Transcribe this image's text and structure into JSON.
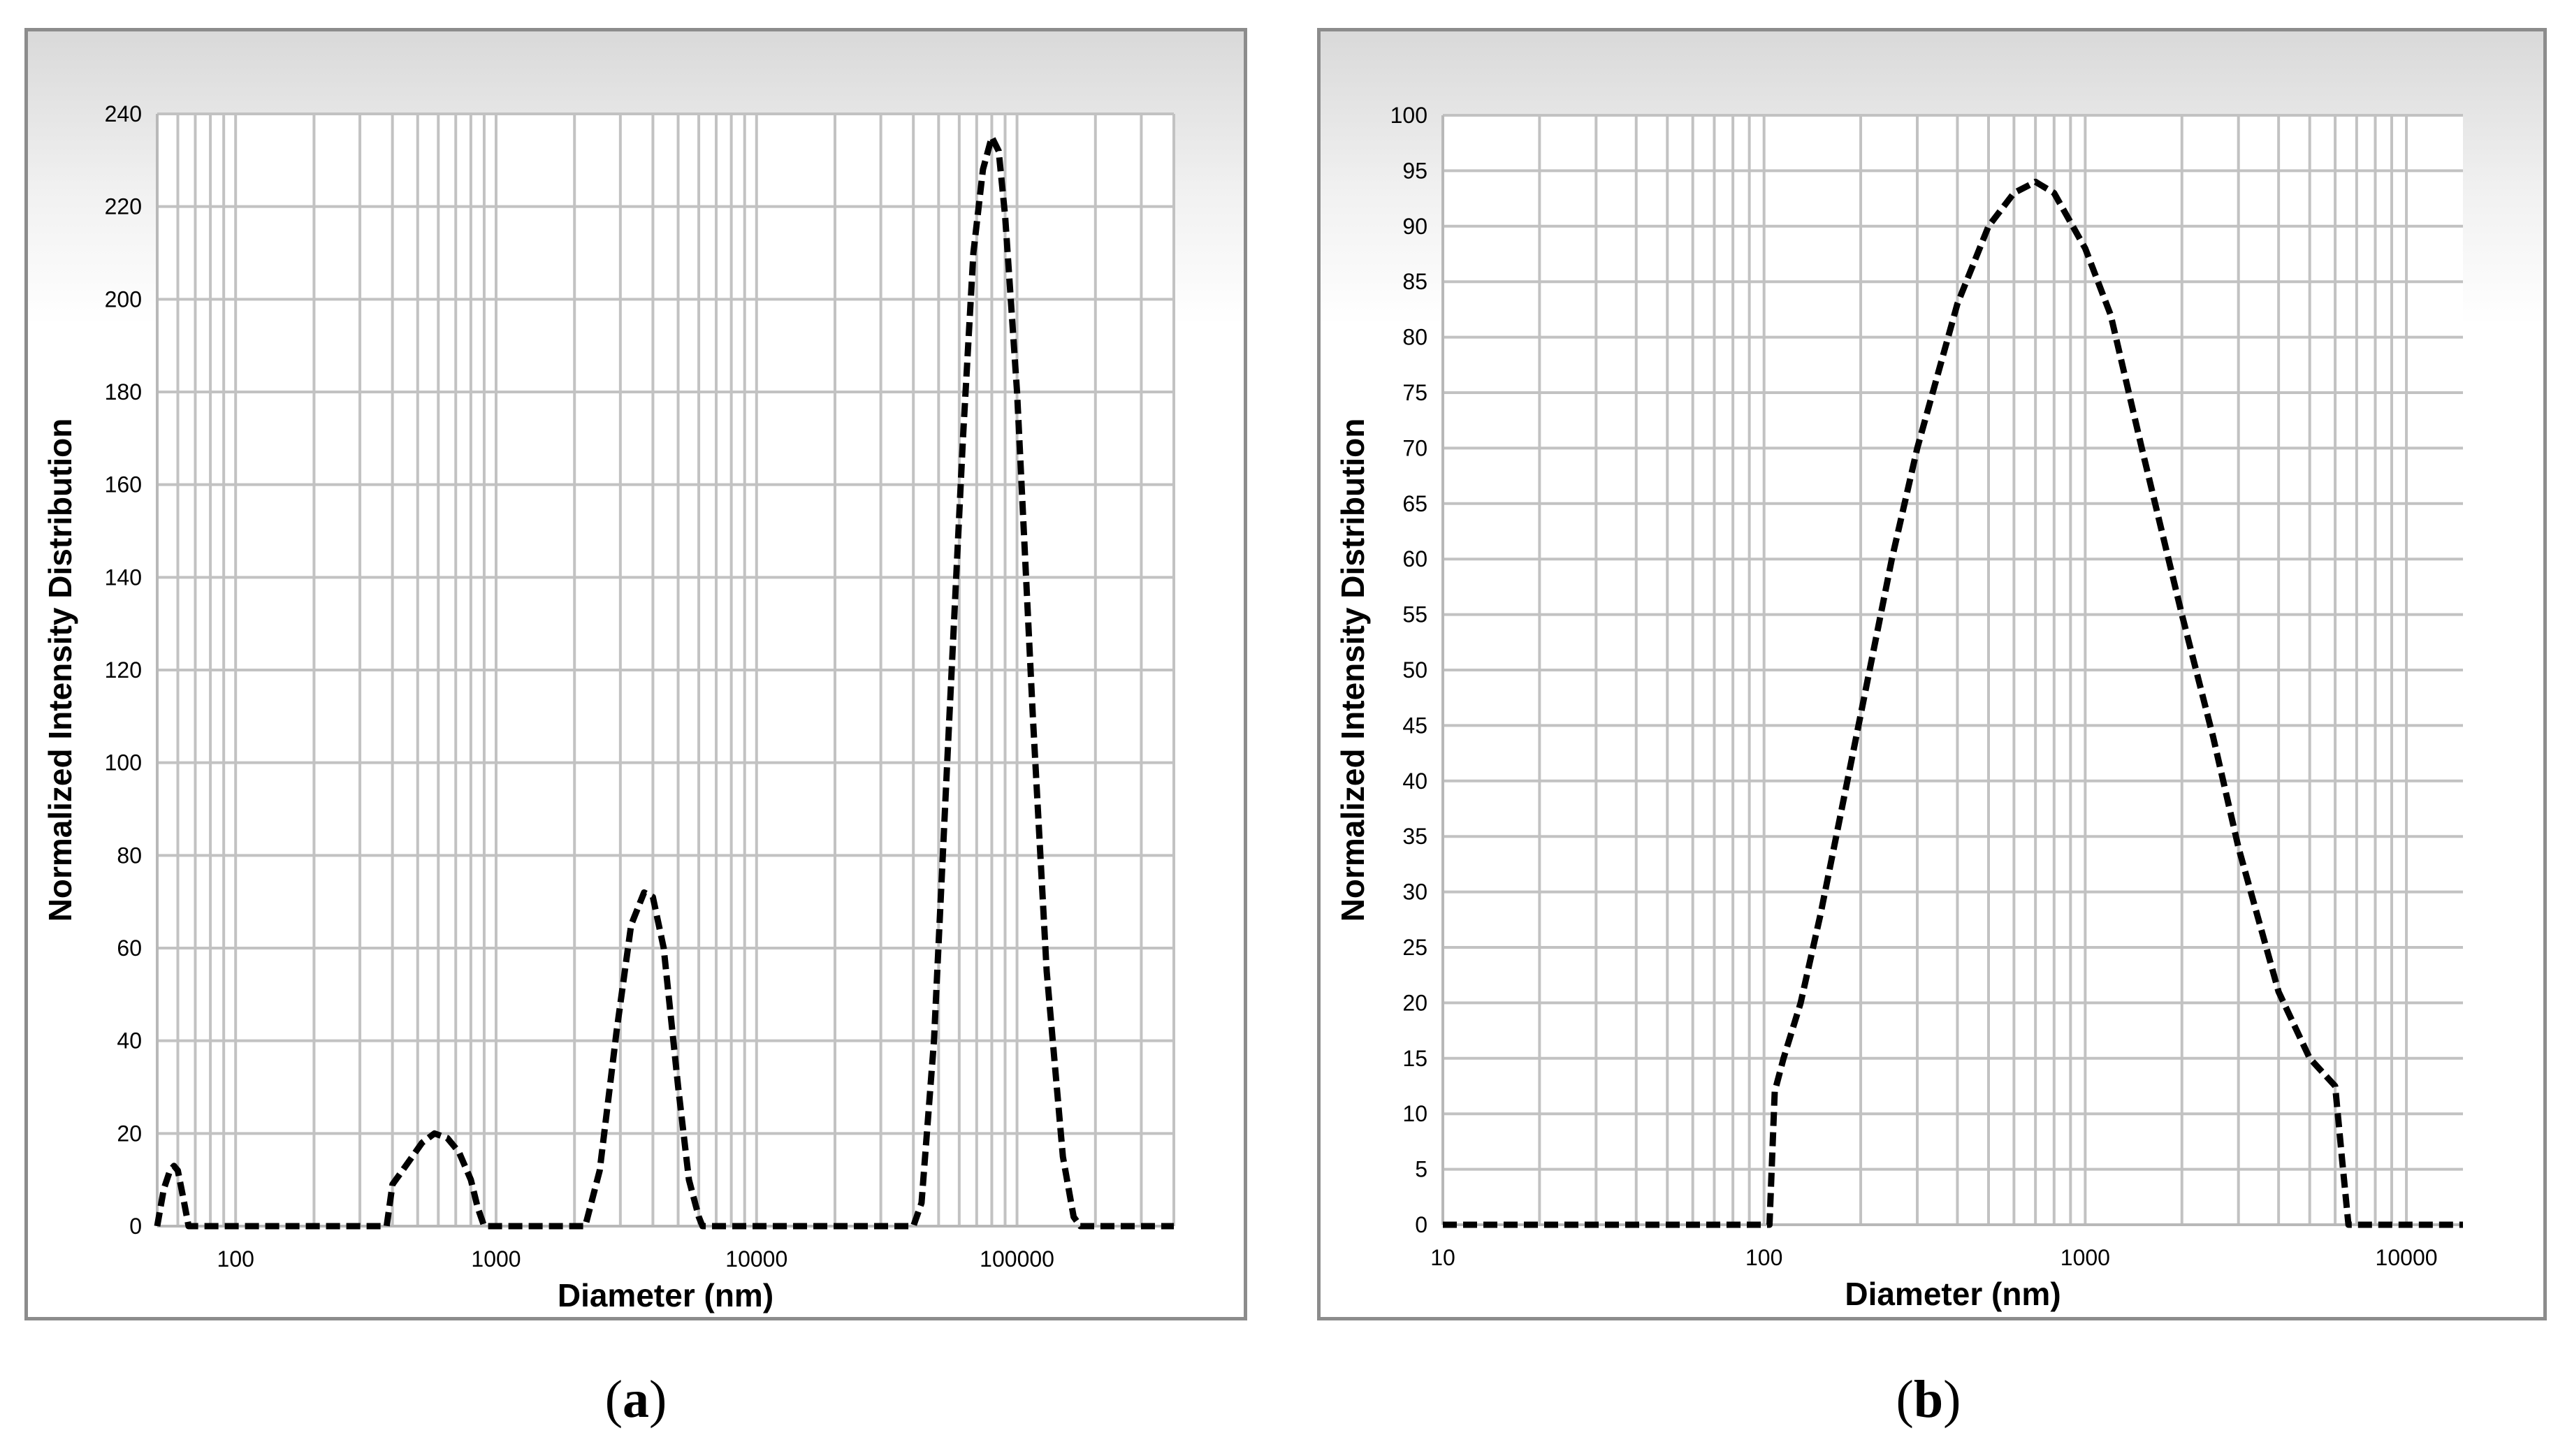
{
  "chart_data": [
    {
      "type": "line",
      "panel_label": "a",
      "xlabel": "Diameter (nm)",
      "ylabel": "Normalized Intensity Distribution",
      "xscale": "log",
      "xlim": [
        50,
        400000
      ],
      "ylim": [
        0,
        240
      ],
      "xticks": [
        100,
        1000,
        10000,
        100000
      ],
      "xtick_labels": [
        "100",
        "1000",
        "10000",
        "100000"
      ],
      "yticks": [
        0,
        20,
        40,
        60,
        80,
        100,
        120,
        140,
        160,
        180,
        200,
        220,
        240
      ],
      "ytick_labels": [
        "0",
        "20",
        "40",
        "60",
        "80",
        "100",
        "120",
        "140",
        "160",
        "180",
        "200",
        "220",
        "240"
      ],
      "grid": true,
      "line_style": "dashed",
      "line_color": "#000000",
      "series": [
        {
          "x": [
            50,
            53,
            56,
            58,
            60,
            63,
            66,
            70,
            100,
            200,
            380,
            400,
            450,
            520,
            580,
            650,
            720,
            800,
            850,
            900,
            1000,
            2000,
            2200,
            2500,
            2900,
            3300,
            3700,
            4000,
            4400,
            5000,
            5500,
            6000,
            6200,
            10000,
            30000,
            40000,
            43000,
            48000,
            55000,
            62000,
            68000,
            74000,
            80000,
            85000,
            90000,
            100000,
            115000,
            130000,
            150000,
            165000,
            175000,
            200000,
            400000
          ],
          "y": [
            0,
            8,
            12,
            13,
            12,
            6,
            0,
            0,
            0,
            0,
            0,
            9,
            13,
            18,
            20,
            19,
            16,
            10,
            4,
            0,
            0,
            0,
            0,
            12,
            42,
            65,
            72,
            71,
            60,
            30,
            10,
            2,
            0,
            0,
            0,
            0,
            5,
            40,
            110,
            170,
            210,
            228,
            235,
            232,
            218,
            180,
            110,
            55,
            15,
            2,
            0,
            0,
            0
          ]
        }
      ]
    },
    {
      "type": "line",
      "panel_label": "b",
      "xlabel": "Diameter (nm)",
      "ylabel": "Normalized Intensity Distribution",
      "xscale": "log",
      "xlim": [
        10,
        15000
      ],
      "ylim": [
        0,
        100
      ],
      "xticks": [
        10,
        100,
        1000,
        10000
      ],
      "xtick_labels": [
        "10",
        "100",
        "1000",
        "10000"
      ],
      "yticks": [
        0,
        5,
        10,
        15,
        20,
        25,
        30,
        35,
        40,
        45,
        50,
        55,
        60,
        65,
        70,
        75,
        80,
        85,
        90,
        95,
        100
      ],
      "ytick_labels": [
        "0",
        "5",
        "10",
        "15",
        "20",
        "25",
        "30",
        "35",
        "40",
        "45",
        "50",
        "55",
        "60",
        "65",
        "70",
        "75",
        "80",
        "85",
        "90",
        "95",
        "100"
      ],
      "grid": true,
      "line_style": "dashed",
      "line_color": "#000000",
      "series": [
        {
          "x": [
            10,
            50,
            104,
            108,
            115,
            130,
            150,
            200,
            250,
            300,
            400,
            500,
            600,
            700,
            800,
            1000,
            1200,
            1500,
            2000,
            2500,
            3000,
            4000,
            5000,
            6000,
            6300,
            6600,
            7000,
            10000,
            15000
          ],
          "y": [
            0,
            0,
            0,
            12,
            15,
            20,
            28,
            46,
            60,
            70,
            83,
            90,
            93,
            94,
            93,
            88,
            82,
            70,
            55,
            44,
            34,
            21,
            15,
            12.5,
            6,
            0,
            0,
            0,
            0
          ]
        }
      ]
    }
  ]
}
